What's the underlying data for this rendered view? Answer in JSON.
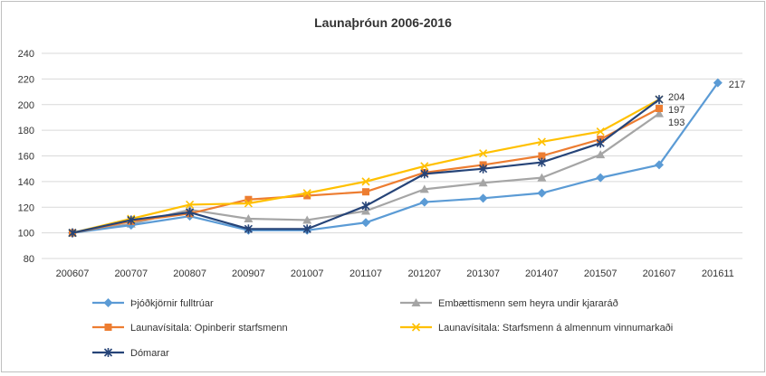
{
  "chart_data": {
    "type": "line",
    "title": "Launaþróun 2006-2016",
    "xlabel": "",
    "ylabel": "",
    "categories": [
      "200607",
      "200707",
      "200807",
      "200907",
      "201007",
      "201107",
      "201207",
      "201307",
      "201407",
      "201507",
      "201607",
      "201611"
    ],
    "ylim": [
      80,
      240
    ],
    "yticks": [
      80,
      100,
      120,
      140,
      160,
      180,
      200,
      220,
      240
    ],
    "grid": "horizontal",
    "legend_position": "bottom",
    "series": [
      {
        "name": "Þjóðkjörnir fulltrúar",
        "color": "#5b9bd5",
        "marker": "diamond",
        "values": [
          100,
          106,
          113,
          102,
          102,
          108,
          124,
          127,
          131,
          143,
          153,
          217
        ]
      },
      {
        "name": "Embættismenn sem heyra undir kjararáð",
        "color": "#a5a5a5",
        "marker": "triangle",
        "values": [
          100,
          107,
          118,
          111,
          110,
          117,
          134,
          139,
          143,
          161,
          193,
          null
        ]
      },
      {
        "name": "Launavísitala: Opinberir starfsmenn",
        "color": "#ed7d31",
        "marker": "square",
        "values": [
          100,
          109,
          115,
          126,
          129,
          132,
          147,
          153,
          160,
          173,
          197,
          null
        ]
      },
      {
        "name": "Launavísitala: Starfsmenn á almennum vinnumarkaði",
        "color": "#ffc000",
        "marker": "x",
        "values": [
          100,
          111,
          122,
          123,
          131,
          140,
          152,
          162,
          171,
          179,
          204,
          null
        ]
      },
      {
        "name": "Dómarar",
        "color": "#264478",
        "marker": "star",
        "values": [
          100,
          110,
          116,
          103,
          103,
          121,
          146,
          150,
          155,
          170,
          204,
          null
        ]
      }
    ],
    "data_labels": [
      {
        "series": 4,
        "index": 10,
        "text": "204"
      },
      {
        "series": 2,
        "index": 10,
        "text": "197"
      },
      {
        "series": 1,
        "index": 10,
        "text": "193"
      },
      {
        "series": 0,
        "index": 11,
        "text": "217"
      }
    ]
  }
}
